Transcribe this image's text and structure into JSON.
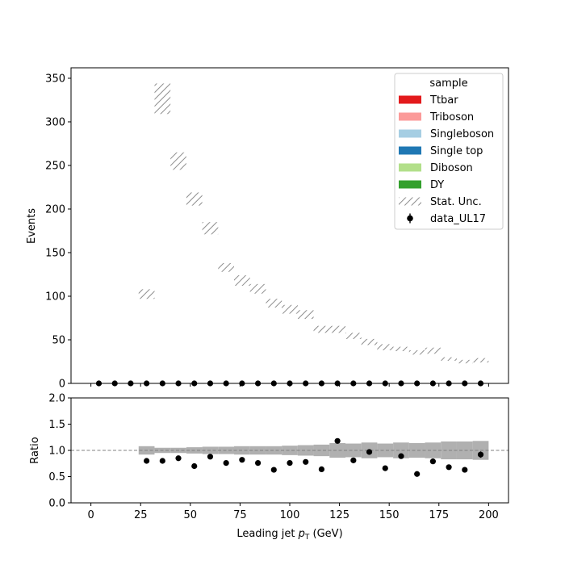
{
  "chart_data": [
    {
      "type": "bar",
      "panel": "main",
      "ylabel": "Events",
      "xlim": [
        -10,
        210
      ],
      "ylim": [
        0,
        362
      ],
      "xticks": [
        0,
        25,
        50,
        75,
        100,
        125,
        150,
        175,
        200
      ],
      "yticks": [
        0,
        50,
        100,
        150,
        200,
        250,
        300,
        350
      ],
      "bin_edges": [
        0,
        8,
        16,
        24,
        32,
        40,
        48,
        56,
        64,
        72,
        80,
        88,
        96,
        104,
        112,
        120,
        128,
        136,
        144,
        152,
        160,
        168,
        176,
        184,
        192,
        200
      ],
      "stat_unc_band": {
        "name": "Stat. Unc.",
        "low": [
          0,
          0,
          0,
          97,
          309,
          245,
          204,
          171,
          128,
          112,
          103,
          87,
          80,
          74,
          58,
          58,
          51,
          44,
          38,
          37,
          33,
          34,
          26,
          23,
          24
        ],
        "high": [
          0,
          0,
          0,
          108,
          344,
          265,
          219,
          185,
          138,
          124,
          114,
          97,
          90,
          84,
          66,
          66,
          58,
          51,
          45,
          42,
          38,
          41,
          30,
          27,
          29
        ]
      },
      "series": [
        {
          "name": "data_UL17",
          "x": [
            4,
            12,
            20,
            28,
            36,
            44,
            52,
            60,
            68,
            76,
            84,
            92,
            100,
            108,
            116,
            124,
            132,
            140,
            148,
            156,
            164,
            172,
            180,
            188,
            196
          ],
          "values": [
            0,
            0,
            0,
            0,
            0,
            0,
            0,
            0,
            0,
            0,
            0,
            0,
            0,
            0,
            0,
            0,
            0,
            0,
            0,
            0,
            0,
            0,
            0,
            0,
            0
          ]
        }
      ],
      "legend": {
        "title": "sample",
        "placement": "top-right",
        "entries": [
          {
            "label": "Ttbar",
            "kind": "patch",
            "color": "#e31a1c"
          },
          {
            "label": "Triboson",
            "kind": "patch",
            "color": "#fb9a99"
          },
          {
            "label": "Singleboson",
            "kind": "patch",
            "color": "#a6cee3"
          },
          {
            "label": "Single top",
            "kind": "patch",
            "color": "#1f78b4"
          },
          {
            "label": "Diboson",
            "kind": "patch",
            "color": "#b2df8a"
          },
          {
            "label": "DY",
            "kind": "patch",
            "color": "#33a02c"
          },
          {
            "label": "Stat. Unc.",
            "kind": "hatch",
            "color": "#808080"
          },
          {
            "label": "data_UL17",
            "kind": "errorbar",
            "color": "#000000"
          }
        ]
      }
    },
    {
      "type": "scatter",
      "panel": "ratio",
      "xlabel": "Leading jet  $p_T$ (GeV)",
      "xlabel_parts": {
        "prefix": "Leading jet  ",
        "symbol": "p",
        "subscript": "T",
        "suffix": " (GeV)"
      },
      "ylabel": "Ratio",
      "xlim": [
        -10,
        210
      ],
      "ylim": [
        0,
        2
      ],
      "xticks": [
        0,
        25,
        50,
        75,
        100,
        125,
        150,
        175,
        200
      ],
      "yticks": [
        "0.0",
        "0.5",
        "1.0",
        "1.5",
        "2.0"
      ],
      "reference_line": 1.0,
      "unc_band": {
        "low": [
          1,
          1,
          1,
          0.92,
          0.95,
          0.95,
          0.94,
          0.93,
          0.93,
          0.92,
          0.92,
          0.92,
          0.91,
          0.9,
          0.89,
          0.86,
          0.87,
          0.85,
          0.87,
          0.85,
          0.86,
          0.85,
          0.83,
          0.83,
          0.82
        ],
        "high": [
          1,
          1,
          1,
          1.08,
          1.05,
          1.05,
          1.06,
          1.07,
          1.07,
          1.08,
          1.08,
          1.08,
          1.09,
          1.1,
          1.11,
          1.14,
          1.13,
          1.15,
          1.13,
          1.15,
          1.14,
          1.15,
          1.17,
          1.17,
          1.18
        ]
      },
      "series": [
        {
          "name": "data_UL17",
          "x": [
            28,
            36,
            44,
            52,
            60,
            68,
            76,
            84,
            92,
            100,
            108,
            116,
            124,
            132,
            140,
            148,
            156,
            164,
            172,
            180,
            188,
            196
          ],
          "values": [
            0.8,
            0.8,
            0.85,
            0.7,
            0.88,
            0.76,
            0.82,
            0.76,
            0.63,
            0.76,
            0.78,
            0.64,
            1.18,
            0.81,
            0.97,
            0.66,
            0.89,
            0.55,
            0.79,
            0.68,
            0.63,
            0.92
          ],
          "err": [
            0.03,
            0.02,
            0.02,
            0.02,
            0.02,
            0.02,
            0.02,
            0.03,
            0.03,
            0.03,
            0.03,
            0.03,
            0.05,
            0.04,
            0.05,
            0.04,
            0.04,
            0.04,
            0.05,
            0.05,
            0.05,
            0.06
          ]
        }
      ]
    }
  ]
}
